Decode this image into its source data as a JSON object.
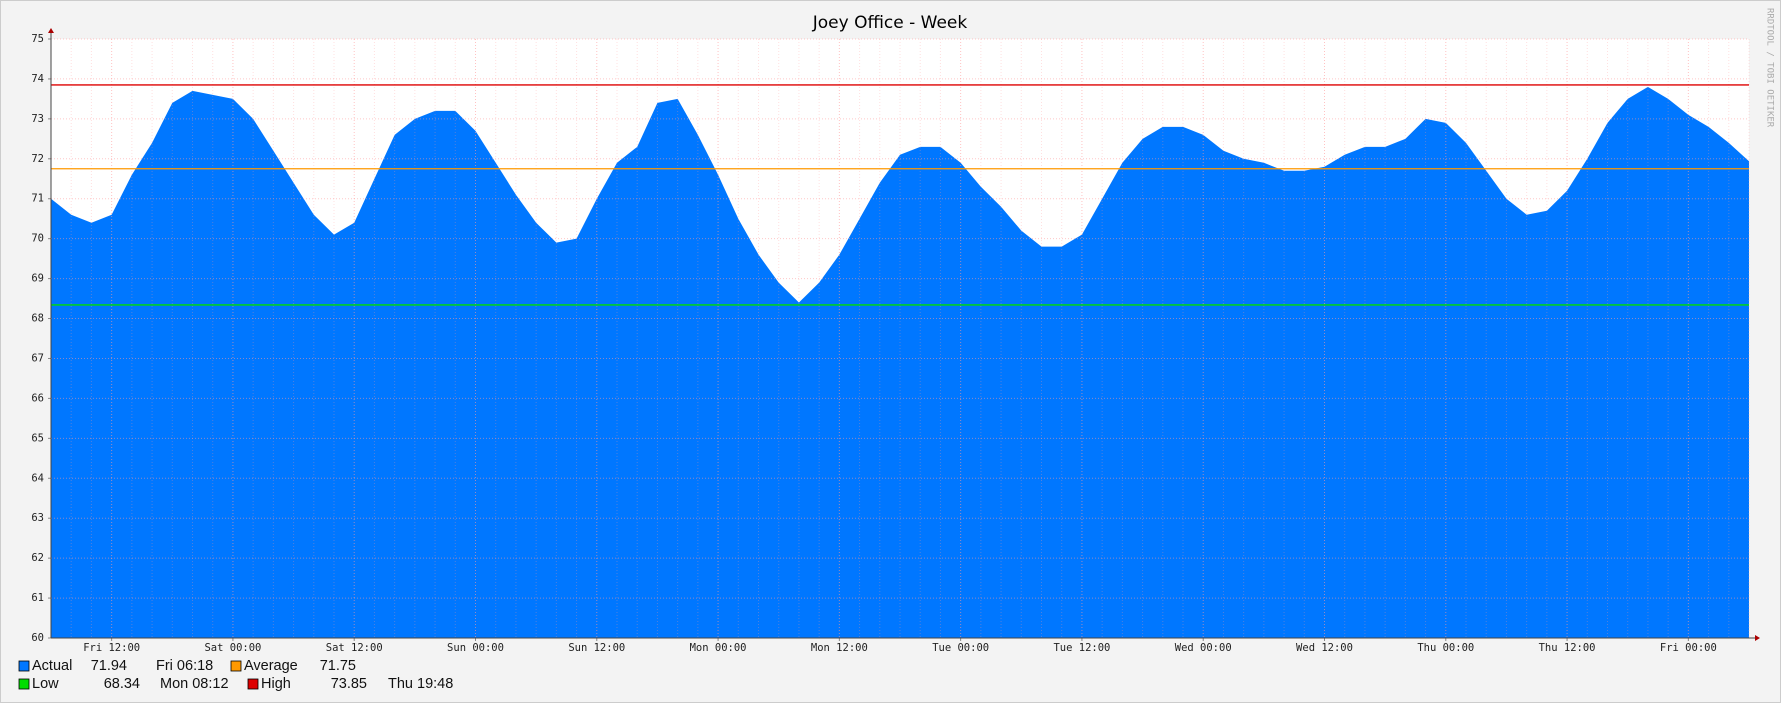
{
  "chart_data": {
    "type": "area",
    "title": "Joey Office - Week",
    "watermark": "RRDTOOL / TOBI OETIKER",
    "categories": [
      null,
      null,
      null,
      "Fri 12:00",
      null,
      null,
      null,
      null,
      null,
      "Sat 00:00",
      null,
      null,
      null,
      null,
      null,
      "Sat 12:00",
      null,
      null,
      null,
      null,
      null,
      "Sun 00:00",
      null,
      null,
      null,
      null,
      null,
      "Sun 12:00",
      null,
      null,
      null,
      null,
      null,
      "Mon 00:00",
      null,
      null,
      null,
      null,
      null,
      "Mon 12:00",
      null,
      null,
      null,
      null,
      null,
      "Tue 00:00",
      null,
      null,
      null,
      null,
      null,
      "Tue 12:00",
      null,
      null,
      null,
      null,
      null,
      "Wed 00:00",
      null,
      null,
      null,
      null,
      null,
      "Wed 12:00",
      null,
      null,
      null,
      null,
      null,
      "Thu 00:00",
      null,
      null,
      null,
      null,
      null,
      "Thu 12:00",
      null,
      null,
      null,
      null,
      null,
      "Fri 00:00",
      null,
      null,
      null
    ],
    "series": [
      {
        "name": "Actual",
        "color": "#0077ff",
        "last": 71.94,
        "time": "Fri 06:18",
        "values": [
          71.0,
          70.6,
          70.4,
          70.6,
          71.6,
          72.4,
          73.4,
          73.7,
          73.6,
          73.5,
          73.0,
          72.2,
          71.4,
          70.6,
          70.1,
          70.4,
          71.5,
          72.6,
          73.0,
          73.2,
          73.2,
          72.7,
          71.9,
          71.1,
          70.4,
          69.9,
          70.0,
          71.0,
          71.9,
          72.3,
          73.4,
          73.5,
          72.6,
          71.6,
          70.5,
          69.6,
          68.9,
          68.4,
          68.9,
          69.6,
          70.5,
          71.4,
          72.1,
          72.3,
          72.3,
          71.9,
          71.3,
          70.8,
          70.2,
          69.8,
          69.8,
          70.1,
          71.0,
          71.9,
          72.5,
          72.8,
          72.8,
          72.6,
          72.2,
          72.0,
          71.9,
          71.7,
          71.7,
          71.8,
          72.1,
          72.3,
          72.3,
          72.5,
          73.0,
          72.9,
          72.4,
          71.7,
          71.0,
          70.6,
          70.7,
          71.2,
          72.0,
          72.9,
          73.5,
          73.8,
          73.5,
          73.1,
          72.8,
          72.4,
          71.94
        ]
      }
    ],
    "reference_lines": [
      {
        "name": "Average",
        "color": "#ff9900",
        "value": 71.75
      },
      {
        "name": "Low",
        "color": "#00dd00",
        "value": 68.34,
        "time": "Mon 08:12"
      },
      {
        "name": "High",
        "color": "#dd0000",
        "value": 73.85,
        "time": "Thu 19:48"
      }
    ],
    "ylim": [
      60,
      75
    ],
    "yticks": [
      60,
      61,
      62,
      63,
      64,
      65,
      66,
      67,
      68,
      69,
      70,
      71,
      72,
      73,
      74,
      75
    ],
    "grid": true
  }
}
